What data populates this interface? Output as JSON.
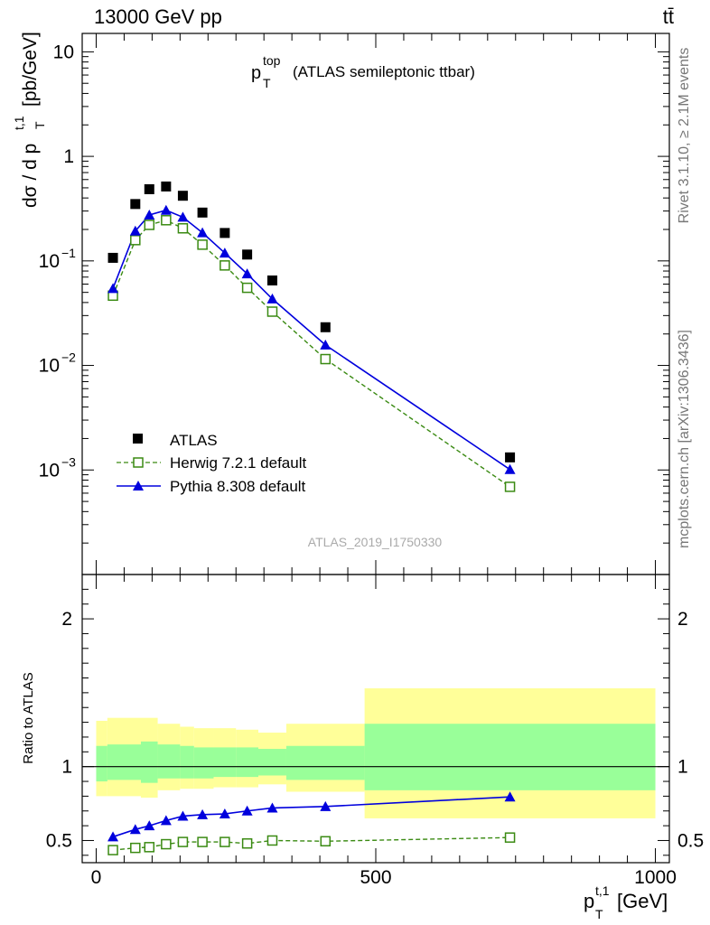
{
  "header": {
    "energy": "13000 GeV pp",
    "process": "tt̄"
  },
  "side_labels": {
    "rivet": "Rivet 3.1.10, ≥ 2.1M events",
    "source": "mcplots.cern.ch [arXiv:1306.3436]"
  },
  "analysis_id": "ATLAS_2019_I1750330",
  "colors": {
    "data": "#000000",
    "herwig": "#3a8a12",
    "pythia": "#0000dd",
    "band_inner": "#99ff99",
    "band_outer": "#ffff99"
  },
  "chart_data": [
    {
      "type": "scatter",
      "title": "p_T^top (ATLAS semileptonic ttbar)",
      "title_main": "p",
      "title_sup": "top",
      "title_sub": "T",
      "title_rest": "(ATLAS semileptonic ttbar)",
      "ylabel": "dσ / d p_T^t,1 [pb/GeV]",
      "ylabel_main": "dσ / d p",
      "ylabel_sup": "t,1",
      "ylabel_sub": "T",
      "ylabel_rest": "[pb/GeV]",
      "yscale": "log",
      "ylim": [
        0.0001,
        15
      ],
      "xlim": [
        -25,
        1025
      ],
      "yticks": [
        {
          "v": 10,
          "base": "10",
          "exp": ""
        },
        {
          "v": 1,
          "base": "1",
          "exp": ""
        },
        {
          "v": 0.1,
          "base": "10",
          "exp": "−1"
        },
        {
          "v": 0.01,
          "base": "10",
          "exp": "−2"
        },
        {
          "v": 0.001,
          "base": "10",
          "exp": "−3"
        }
      ],
      "legend_position": "bottom-left",
      "legend": [
        "ATLAS",
        "Herwig 7.2.1 default",
        "Pythia 8.308 default"
      ],
      "x": [
        30,
        70,
        95,
        125,
        155,
        190,
        230,
        270,
        315,
        410,
        740
      ],
      "series": [
        {
          "name": "ATLAS",
          "values": [
            0.107,
            0.35,
            0.485,
            0.515,
            0.42,
            0.29,
            0.185,
            0.115,
            0.065,
            0.0232,
            0.00132
          ]
        },
        {
          "name": "Herwig 7.2.1 default",
          "values": [
            0.0465,
            0.158,
            0.221,
            0.245,
            0.205,
            0.143,
            0.0905,
            0.0553,
            0.0327,
            0.0115,
            0.00069
          ]
        },
        {
          "name": "Pythia 8.308 default",
          "values": [
            0.0545,
            0.193,
            0.275,
            0.305,
            0.262,
            0.186,
            0.119,
            0.0752,
            0.0433,
            0.0157,
            0.00101
          ]
        }
      ]
    },
    {
      "type": "scatter",
      "ylabel": "Ratio to ATLAS",
      "xlabel": "p_T^t,1 [GeV]",
      "xlabel_main": "p",
      "xlabel_sup": "t,1",
      "xlabel_sub": "T",
      "xlabel_rest": "[GeV]",
      "ylim": [
        0.35,
        2.3
      ],
      "xlim": [
        -25,
        1025
      ],
      "yticks": [
        0.5,
        1,
        2
      ],
      "xticks": [
        0,
        500,
        1000
      ],
      "bands": [
        {
          "x0": 0,
          "x1": 20,
          "inner": [
            0.9,
            1.14
          ],
          "outer": [
            0.8,
            1.31
          ]
        },
        {
          "x0": 20,
          "x1": 80,
          "inner": [
            0.91,
            1.15
          ],
          "outer": [
            0.8,
            1.33
          ]
        },
        {
          "x0": 80,
          "x1": 110,
          "inner": [
            0.89,
            1.17
          ],
          "outer": [
            0.79,
            1.33
          ]
        },
        {
          "x0": 110,
          "x1": 150,
          "inner": [
            0.92,
            1.15
          ],
          "outer": [
            0.84,
            1.29
          ]
        },
        {
          "x0": 150,
          "x1": 175,
          "inner": [
            0.92,
            1.14
          ],
          "outer": [
            0.85,
            1.27
          ]
        },
        {
          "x0": 175,
          "x1": 210,
          "inner": [
            0.92,
            1.13
          ],
          "outer": [
            0.85,
            1.26
          ]
        },
        {
          "x0": 210,
          "x1": 250,
          "inner": [
            0.93,
            1.13
          ],
          "outer": [
            0.86,
            1.26
          ]
        },
        {
          "x0": 250,
          "x1": 290,
          "inner": [
            0.93,
            1.13
          ],
          "outer": [
            0.86,
            1.25
          ]
        },
        {
          "x0": 290,
          "x1": 340,
          "inner": [
            0.94,
            1.12
          ],
          "outer": [
            0.88,
            1.23
          ]
        },
        {
          "x0": 340,
          "x1": 480,
          "inner": [
            0.91,
            1.14
          ],
          "outer": [
            0.83,
            1.29
          ]
        },
        {
          "x0": 480,
          "x1": 1000,
          "inner": [
            0.84,
            1.29
          ],
          "outer": [
            0.65,
            1.53
          ]
        }
      ],
      "x": [
        30,
        70,
        95,
        125,
        155,
        190,
        230,
        270,
        315,
        410,
        740
      ],
      "series": [
        {
          "name": "Herwig 7.2.1 default",
          "values": [
            0.435,
            0.45,
            0.455,
            0.475,
            0.49,
            0.49,
            0.49,
            0.48,
            0.5,
            0.495,
            0.52
          ]
        },
        {
          "name": "Pythia 8.308 default",
          "values": [
            0.525,
            0.575,
            0.6,
            0.635,
            0.665,
            0.675,
            0.68,
            0.7,
            0.72,
            0.73,
            0.795
          ]
        }
      ]
    }
  ]
}
